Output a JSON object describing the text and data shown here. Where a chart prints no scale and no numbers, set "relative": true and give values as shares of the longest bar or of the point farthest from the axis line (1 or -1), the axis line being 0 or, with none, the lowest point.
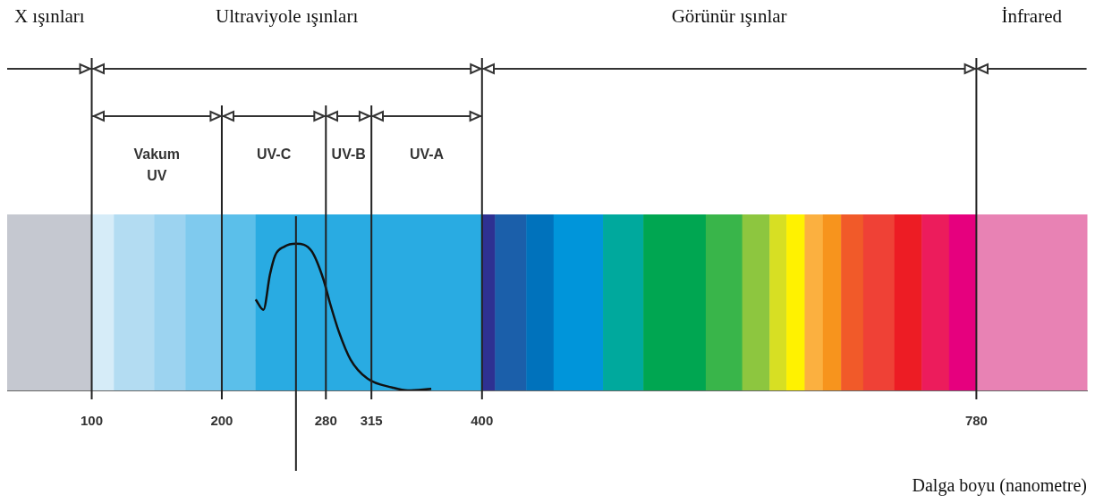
{
  "chart_data": {
    "type": "line",
    "relative": true,
    "xlabel": "Dalga boyu (nanometre)",
    "xlim": [
      35,
      865
    ],
    "xticks": [
      100,
      200,
      280,
      315,
      400,
      780
    ],
    "tick_labels": "x",
    "grid": false,
    "legend": false,
    "marker": "none",
    "line_style": "solid",
    "annotations": [
      "X ışınları",
      "Ultraviyole ışınları",
      "Görünür ışınlar",
      "İnfrared",
      "Vakum UV",
      "UV-C",
      "UV-B",
      "UV-A"
    ],
    "series": [
      {
        "color": "#111111",
        "x": [
          226,
          232,
          237,
          241,
          248,
          257,
          269,
          278,
          283,
          290,
          299,
          312,
          331,
          343,
          361
        ],
        "values": [
          0.62,
          0.55,
          0.79,
          0.92,
          0.98,
          1,
          0.95,
          0.76,
          0.6,
          0.4,
          0.21,
          0.08,
          0.02,
          0,
          0.01
        ]
      }
    ],
    "bands": [
      {
        "axis": "x",
        "from": 35,
        "to": 100,
        "color": "#c5c8d0"
      },
      {
        "axis": "x",
        "from": 100,
        "to": 117,
        "color": "#d6ecf8"
      },
      {
        "axis": "x",
        "from": 117,
        "to": 148,
        "color": "#b3dcf2"
      },
      {
        "axis": "x",
        "from": 148,
        "to": 172,
        "color": "#9cd3f0"
      },
      {
        "axis": "x",
        "from": 172,
        "to": 200,
        "color": "#7fcaee"
      },
      {
        "axis": "x",
        "from": 200,
        "to": 226,
        "color": "#5bbfea"
      },
      {
        "axis": "x",
        "from": 226,
        "to": 400,
        "color": "#29abe2"
      },
      {
        "axis": "x",
        "from": 400,
        "to": 410,
        "color": "#2e3192"
      },
      {
        "axis": "x",
        "from": 410,
        "to": 434,
        "color": "#1b5faa"
      },
      {
        "axis": "x",
        "from": 434,
        "to": 455,
        "color": "#0072bc"
      },
      {
        "axis": "x",
        "from": 455,
        "to": 493,
        "color": "#0095da"
      },
      {
        "axis": "x",
        "from": 493,
        "to": 524,
        "color": "#00a99d"
      },
      {
        "axis": "x",
        "from": 524,
        "to": 572,
        "color": "#00a651"
      },
      {
        "axis": "x",
        "from": 572,
        "to": 600,
        "color": "#39b54a"
      },
      {
        "axis": "x",
        "from": 600,
        "to": 621,
        "color": "#8dc63f"
      },
      {
        "axis": "x",
        "from": 621,
        "to": 634,
        "color": "#d7df23"
      },
      {
        "axis": "x",
        "from": 634,
        "to": 648,
        "color": "#fff200"
      },
      {
        "axis": "x",
        "from": 648,
        "to": 662,
        "color": "#fbb040"
      },
      {
        "axis": "x",
        "from": 662,
        "to": 676,
        "color": "#f7941d"
      },
      {
        "axis": "x",
        "from": 676,
        "to": 693,
        "color": "#f15a29"
      },
      {
        "axis": "x",
        "from": 693,
        "to": 717,
        "color": "#ef4136"
      },
      {
        "axis": "x",
        "from": 717,
        "to": 738,
        "color": "#ed1c24"
      },
      {
        "axis": "x",
        "from": 738,
        "to": 759,
        "color": "#ec1c5c"
      },
      {
        "axis": "x",
        "from": 759,
        "to": 780,
        "color": "#e6007e"
      },
      {
        "axis": "x",
        "from": 780,
        "to": 865,
        "color": "#e882b4"
      }
    ],
    "ref_lines": [
      {
        "axis": "x",
        "value": 100,
        "color": "#222222"
      },
      {
        "axis": "x",
        "value": 200,
        "color": "#222222"
      },
      {
        "axis": "x",
        "value": 280,
        "color": "#222222"
      },
      {
        "axis": "x",
        "value": 315,
        "color": "#222222"
      },
      {
        "axis": "x",
        "value": 400,
        "color": "#222222"
      },
      {
        "axis": "x",
        "value": 780,
        "color": "#222222"
      },
      {
        "axis": "x",
        "value": 257,
        "color": "#222222"
      }
    ]
  }
}
